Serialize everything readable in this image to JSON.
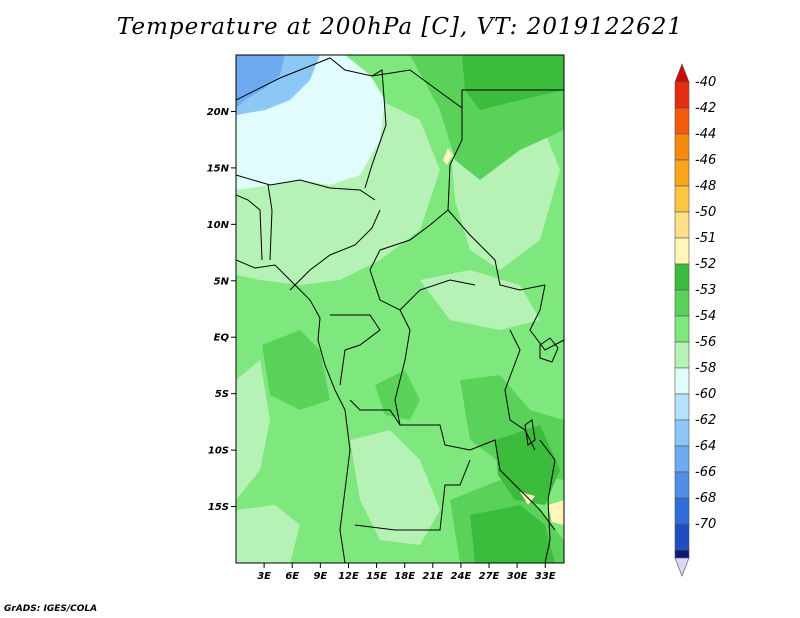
{
  "title": "Temperature at 200hPa [C], VT: 2019122621",
  "credit": "GrADS: IGES/COLA",
  "map": {
    "lon_range": [
      0,
      35
    ],
    "lat_range": [
      -20,
      25
    ],
    "lat_ticks": [
      {
        "value": 20,
        "label": "20N"
      },
      {
        "value": 15,
        "label": "15N"
      },
      {
        "value": 10,
        "label": "10N"
      },
      {
        "value": 5,
        "label": "5N"
      },
      {
        "value": 0,
        "label": "EQ"
      },
      {
        "value": -5,
        "label": "5S"
      },
      {
        "value": -10,
        "label": "10S"
      },
      {
        "value": -15,
        "label": "15S"
      }
    ],
    "lon_ticks": [
      {
        "value": 3,
        "label": "3E"
      },
      {
        "value": 6,
        "label": "6E"
      },
      {
        "value": 9,
        "label": "9E"
      },
      {
        "value": 12,
        "label": "12E"
      },
      {
        "value": 15,
        "label": "15E"
      },
      {
        "value": 18,
        "label": "18E"
      },
      {
        "value": 21,
        "label": "21E"
      },
      {
        "value": 24,
        "label": "24E"
      },
      {
        "value": 27,
        "label": "27E"
      },
      {
        "value": 30,
        "label": "30E"
      },
      {
        "value": 33,
        "label": "33E"
      }
    ]
  },
  "colorbar": {
    "levels": [
      {
        "label": "-40",
        "color": "#e62c0e"
      },
      {
        "label": "-42",
        "color": "#f35a0a"
      },
      {
        "label": "-44",
        "color": "#f78a0e"
      },
      {
        "label": "-46",
        "color": "#fba51c"
      },
      {
        "label": "-48",
        "color": "#fdc540"
      },
      {
        "label": "-50",
        "color": "#fee08a"
      },
      {
        "label": "-51",
        "color": "#fff7ba"
      },
      {
        "label": "-52",
        "color": "#3cbc3c"
      },
      {
        "label": "-53",
        "color": "#5ad25a"
      },
      {
        "label": "-54",
        "color": "#7ee87e"
      },
      {
        "label": "-56",
        "color": "#b6f2b6"
      },
      {
        "label": "-58",
        "color": "#e0fcfc"
      },
      {
        "label": "-60",
        "color": "#b4e2fa"
      },
      {
        "label": "-62",
        "color": "#8cc8f6"
      },
      {
        "label": "-64",
        "color": "#6eaaf2"
      },
      {
        "label": "-66",
        "color": "#4e8ee6"
      },
      {
        "label": "-68",
        "color": "#2e6ed8"
      },
      {
        "label": "-70",
        "color": "#1e4ec2"
      }
    ],
    "top_cap_color": "#c80a0a",
    "bottom_cap_color": "#d8d8f4",
    "last_color": "#0a1a78"
  },
  "colors": {
    "base": "#7ee87e",
    "light_green": "#b6f2b6",
    "mid_green": "#5ad25a",
    "dark_green": "#3cbc3c",
    "pale_cyan": "#e0fcfc",
    "light_blue": "#8cc8f6",
    "blue": "#6eaaf2",
    "yellow": "#fff7ba"
  }
}
